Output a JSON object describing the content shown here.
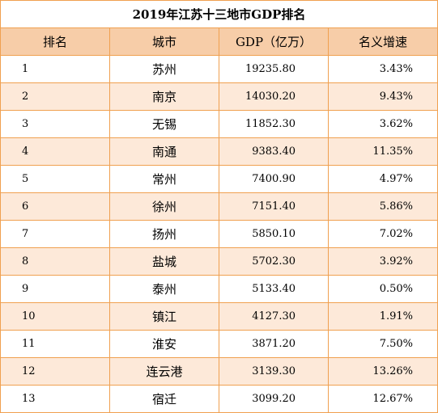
{
  "title": "2019年江苏十三地市GDP排名",
  "headers": {
    "rank": "排名",
    "city": "城市",
    "gdp": "GDP（亿万）",
    "growth": "名义增速"
  },
  "rows": [
    {
      "rank": "1",
      "city": "苏州",
      "gdp": "19235.80",
      "growth": "3.43%"
    },
    {
      "rank": "2",
      "city": "南京",
      "gdp": "14030.20",
      "growth": "9.43%"
    },
    {
      "rank": "3",
      "city": "无锡",
      "gdp": "11852.30",
      "growth": "3.62%"
    },
    {
      "rank": "4",
      "city": "南通",
      "gdp": "9383.40",
      "growth": "11.35%"
    },
    {
      "rank": "5",
      "city": "常州",
      "gdp": "7400.90",
      "growth": "4.97%"
    },
    {
      "rank": "6",
      "city": "徐州",
      "gdp": "7151.40",
      "growth": "5.86%"
    },
    {
      "rank": "7",
      "city": "扬州",
      "gdp": "5850.10",
      "growth": "7.02%"
    },
    {
      "rank": "8",
      "city": "盐城",
      "gdp": "5702.30",
      "growth": "3.92%"
    },
    {
      "rank": "9",
      "city": "泰州",
      "gdp": "5133.40",
      "growth": "0.50%"
    },
    {
      "rank": "10",
      "city": "镇江",
      "gdp": "4127.30",
      "growth": "1.91%"
    },
    {
      "rank": "11",
      "city": "淮安",
      "gdp": "3871.20",
      "growth": "7.50%"
    },
    {
      "rank": "12",
      "city": "连云港",
      "gdp": "3139.30",
      "growth": "13.26%"
    },
    {
      "rank": "13",
      "city": "宿迁",
      "gdp": "3099.20",
      "growth": "12.67%"
    }
  ],
  "colors": {
    "border": "#f0a050",
    "header_bg": "#f7cda8",
    "stripe_bg": "#fde9d9"
  }
}
